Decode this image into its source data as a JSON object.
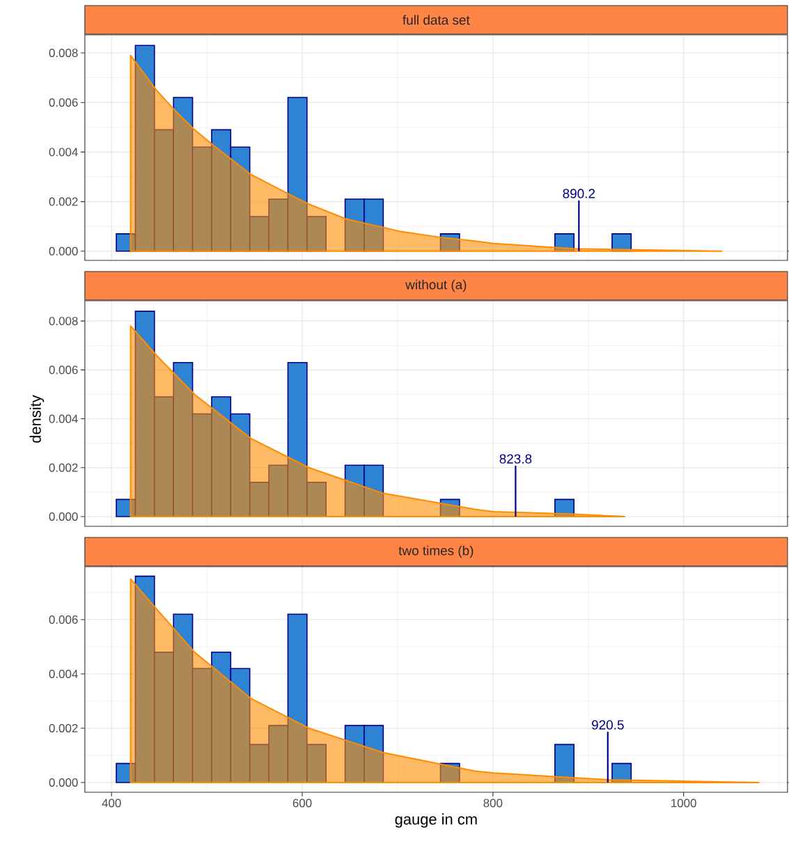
{
  "chart_data": [
    {
      "type": "histogram",
      "title": "full data set",
      "bins": [
        405,
        425,
        445,
        465,
        485,
        505,
        525,
        545,
        565,
        585,
        605,
        625,
        645,
        665,
        685,
        705,
        725,
        745,
        765,
        785,
        805,
        825,
        845,
        865,
        885,
        905,
        925,
        945,
        965,
        985,
        1005,
        1025,
        1045,
        1065,
        1085
      ],
      "series": [
        {
          "type": "histogram",
          "color": "#2f83d3",
          "values": [
            0.0007,
            0.0083,
            0.0049,
            0.0062,
            0.0042,
            0.0049,
            0.0042,
            0.0014,
            0.0021,
            0.0062,
            0.0014,
            0,
            0.0021,
            0.0021,
            0,
            0,
            0,
            0.0007,
            0,
            0,
            0,
            0,
            0,
            0.0007,
            0,
            0,
            0.0007,
            0,
            0,
            0,
            0,
            0,
            0,
            0
          ]
        },
        {
          "type": "area",
          "color": "#ff8c00",
          "x": [
            420,
            447,
            466,
            487,
            506,
            526,
            546,
            586,
            607,
            646,
            685,
            702,
            745,
            781,
            801,
            885,
            1040
          ],
          "values": [
            0.0079,
            0.0065,
            0.0057,
            0.0049,
            0.0043,
            0.0037,
            0.0031,
            0.0023,
            0.0019,
            0.0013,
            0.00096,
            0.0008,
            0.00056,
            0.00041,
            0.00031,
            0.0001,
            0
          ]
        }
      ],
      "xlim": [
        372,
        1109
      ],
      "ylim": [
        -0.00037,
        0.00873
      ],
      "xticks": [
        400,
        600,
        800,
        1000
      ],
      "yticks": [
        {
          "value": 0,
          "label": "0.000"
        },
        {
          "value": 0.002,
          "label": "0.002"
        },
        {
          "value": 0.004,
          "label": "0.004"
        },
        {
          "value": 0.006,
          "label": "0.006"
        },
        {
          "value": 0.008,
          "label": "0.008"
        }
      ],
      "grid": true,
      "tick_labels": "y",
      "ref_lines": [
        {
          "axis": "x",
          "value": 890.2,
          "label": "890.2",
          "color": "#00008b"
        }
      ]
    },
    {
      "type": "histogram",
      "title": "without (a)",
      "ylabel": "density",
      "bins": [
        405,
        425,
        445,
        465,
        485,
        505,
        525,
        545,
        565,
        585,
        605,
        625,
        645,
        665,
        685,
        705,
        725,
        745,
        765,
        785,
        805,
        825,
        845,
        865,
        885,
        905,
        925,
        945,
        965,
        985,
        1005,
        1025,
        1045,
        1065,
        1085
      ],
      "series": [
        {
          "type": "histogram",
          "color": "#2f83d3",
          "values": [
            0.0007,
            0.0084,
            0.0049,
            0.0063,
            0.0042,
            0.0049,
            0.0042,
            0.0014,
            0.0021,
            0.0063,
            0.0014,
            0,
            0.0021,
            0.0021,
            0,
            0,
            0,
            0.0007,
            0,
            0,
            0,
            0,
            0,
            0.0007,
            0,
            0,
            0,
            0,
            0,
            0,
            0,
            0,
            0,
            0
          ]
        },
        {
          "type": "area",
          "color": "#ff8c00",
          "x": [
            420,
            447,
            487,
            546,
            607,
            685,
            781,
            801,
            885,
            938
          ],
          "values": [
            0.0078,
            0.0066,
            0.005,
            0.0032,
            0.002,
            0.00095,
            0.0003,
            0.0002,
            0.0001,
            0
          ]
        }
      ],
      "xlim": [
        372,
        1109
      ],
      "ylim": [
        -0.0004,
        0.00883
      ],
      "xticks": [
        400,
        600,
        800,
        1000
      ],
      "yticks": [
        {
          "value": 0,
          "label": "0.000"
        },
        {
          "value": 0.002,
          "label": "0.002"
        },
        {
          "value": 0.004,
          "label": "0.004"
        },
        {
          "value": 0.006,
          "label": "0.006"
        },
        {
          "value": 0.008,
          "label": "0.008"
        }
      ],
      "grid": true,
      "tick_labels": "y",
      "ref_lines": [
        {
          "axis": "x",
          "value": 823.8,
          "label": "823.8",
          "color": "#00008b"
        }
      ]
    },
    {
      "type": "histogram",
      "title": "two times (b)",
      "xlabel": "gauge in cm",
      "bins": [
        405,
        425,
        445,
        465,
        485,
        505,
        525,
        545,
        565,
        585,
        605,
        625,
        645,
        665,
        685,
        705,
        725,
        745,
        765,
        785,
        805,
        825,
        845,
        865,
        885,
        905,
        925,
        945,
        965,
        985,
        1005,
        1025,
        1045,
        1065,
        1085
      ],
      "series": [
        {
          "type": "histogram",
          "color": "#2f83d3",
          "values": [
            0.0007,
            0.0076,
            0.0048,
            0.0062,
            0.0042,
            0.0048,
            0.0042,
            0.0014,
            0.0021,
            0.0062,
            0.0014,
            0,
            0.0021,
            0.0021,
            0,
            0,
            0,
            0.0007,
            0,
            0,
            0,
            0,
            0,
            0.0014,
            0,
            0,
            0.0007,
            0,
            0,
            0,
            0,
            0,
            0,
            0
          ]
        },
        {
          "type": "area",
          "color": "#ff8c00",
          "x": [
            420,
            447,
            487,
            546,
            607,
            685,
            781,
            801,
            921,
            1079
          ],
          "values": [
            0.0075,
            0.0064,
            0.0048,
            0.0031,
            0.002,
            0.0011,
            0.00042,
            0.00035,
            0.0001,
            0
          ]
        }
      ],
      "xlim": [
        372,
        1109
      ],
      "ylim": [
        -0.00036,
        0.00795
      ],
      "xticks": [
        400,
        600,
        800,
        1000
      ],
      "yticks": [
        {
          "value": 0,
          "label": "0.000"
        },
        {
          "value": 0.002,
          "label": "0.002"
        },
        {
          "value": 0.004,
          "label": "0.004"
        },
        {
          "value": 0.006,
          "label": "0.006"
        }
      ],
      "grid": true,
      "ref_lines": [
        {
          "axis": "x",
          "value": 920.5,
          "label": "920.5",
          "color": "#00008b"
        }
      ]
    }
  ]
}
